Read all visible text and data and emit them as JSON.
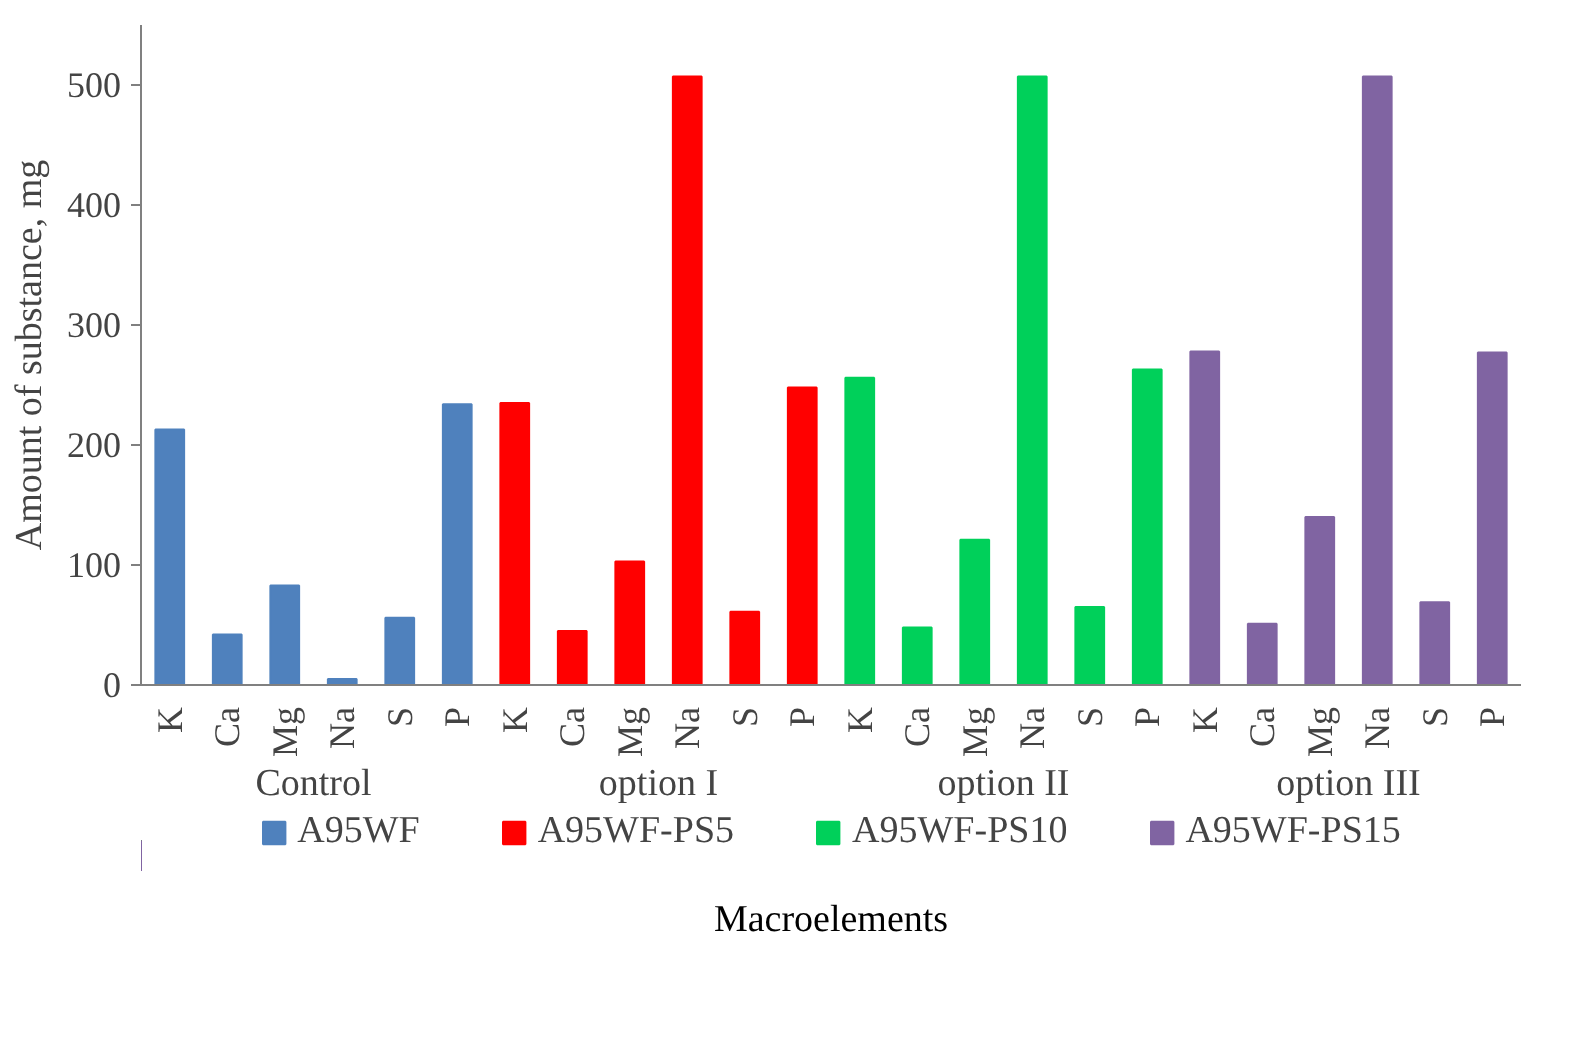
{
  "chart_data": {
    "type": "bar",
    "xlabel": "Macroelements",
    "ylabel": "Amount of substance, mg",
    "categories": [
      "K",
      "Ca",
      "Mg",
      "Na",
      "S",
      "P",
      "K",
      "Ca",
      "Mg",
      "Na",
      "S",
      "P",
      "K",
      "Ca",
      "Mg",
      "Na",
      "S",
      "P",
      "K",
      "Ca",
      "Mg",
      "Na",
      "S",
      "P"
    ],
    "series": [
      {
        "name": "A95WF",
        "color": "#4f81bd",
        "values": [
          213,
          42,
          83,
          5,
          56,
          234,
          null,
          null,
          null,
          null,
          null,
          null,
          null,
          null,
          null,
          null,
          null,
          null,
          null,
          null,
          null,
          null,
          null,
          null
        ]
      },
      {
        "name": "A95WF-PS5",
        "color": "#ff0000",
        "values": [
          null,
          null,
          null,
          null,
          null,
          null,
          235,
          45,
          103,
          507,
          61,
          248,
          null,
          null,
          null,
          null,
          null,
          null,
          null,
          null,
          null,
          null,
          null,
          null
        ]
      },
      {
        "name": "A95WF-PS10",
        "color": "#00d05a",
        "values": [
          null,
          null,
          null,
          null,
          null,
          null,
          null,
          null,
          null,
          null,
          null,
          null,
          256,
          48,
          121,
          507,
          65,
          263,
          null,
          null,
          null,
          null,
          null,
          null
        ]
      },
      {
        "name": "A95WF-PS15",
        "color": "#8064a2",
        "values": [
          null,
          null,
          null,
          null,
          null,
          null,
          null,
          null,
          null,
          null,
          null,
          null,
          null,
          null,
          null,
          null,
          null,
          null,
          278,
          51,
          140,
          507,
          69,
          277
        ]
      }
    ],
    "annotations": [
      "Control",
      "option I",
      "option II",
      "option III"
    ],
    "ylim": [
      0,
      550
    ],
    "yticks": [
      0,
      100,
      200,
      300,
      400,
      500
    ],
    "grid": false,
    "legend": "bottom"
  }
}
